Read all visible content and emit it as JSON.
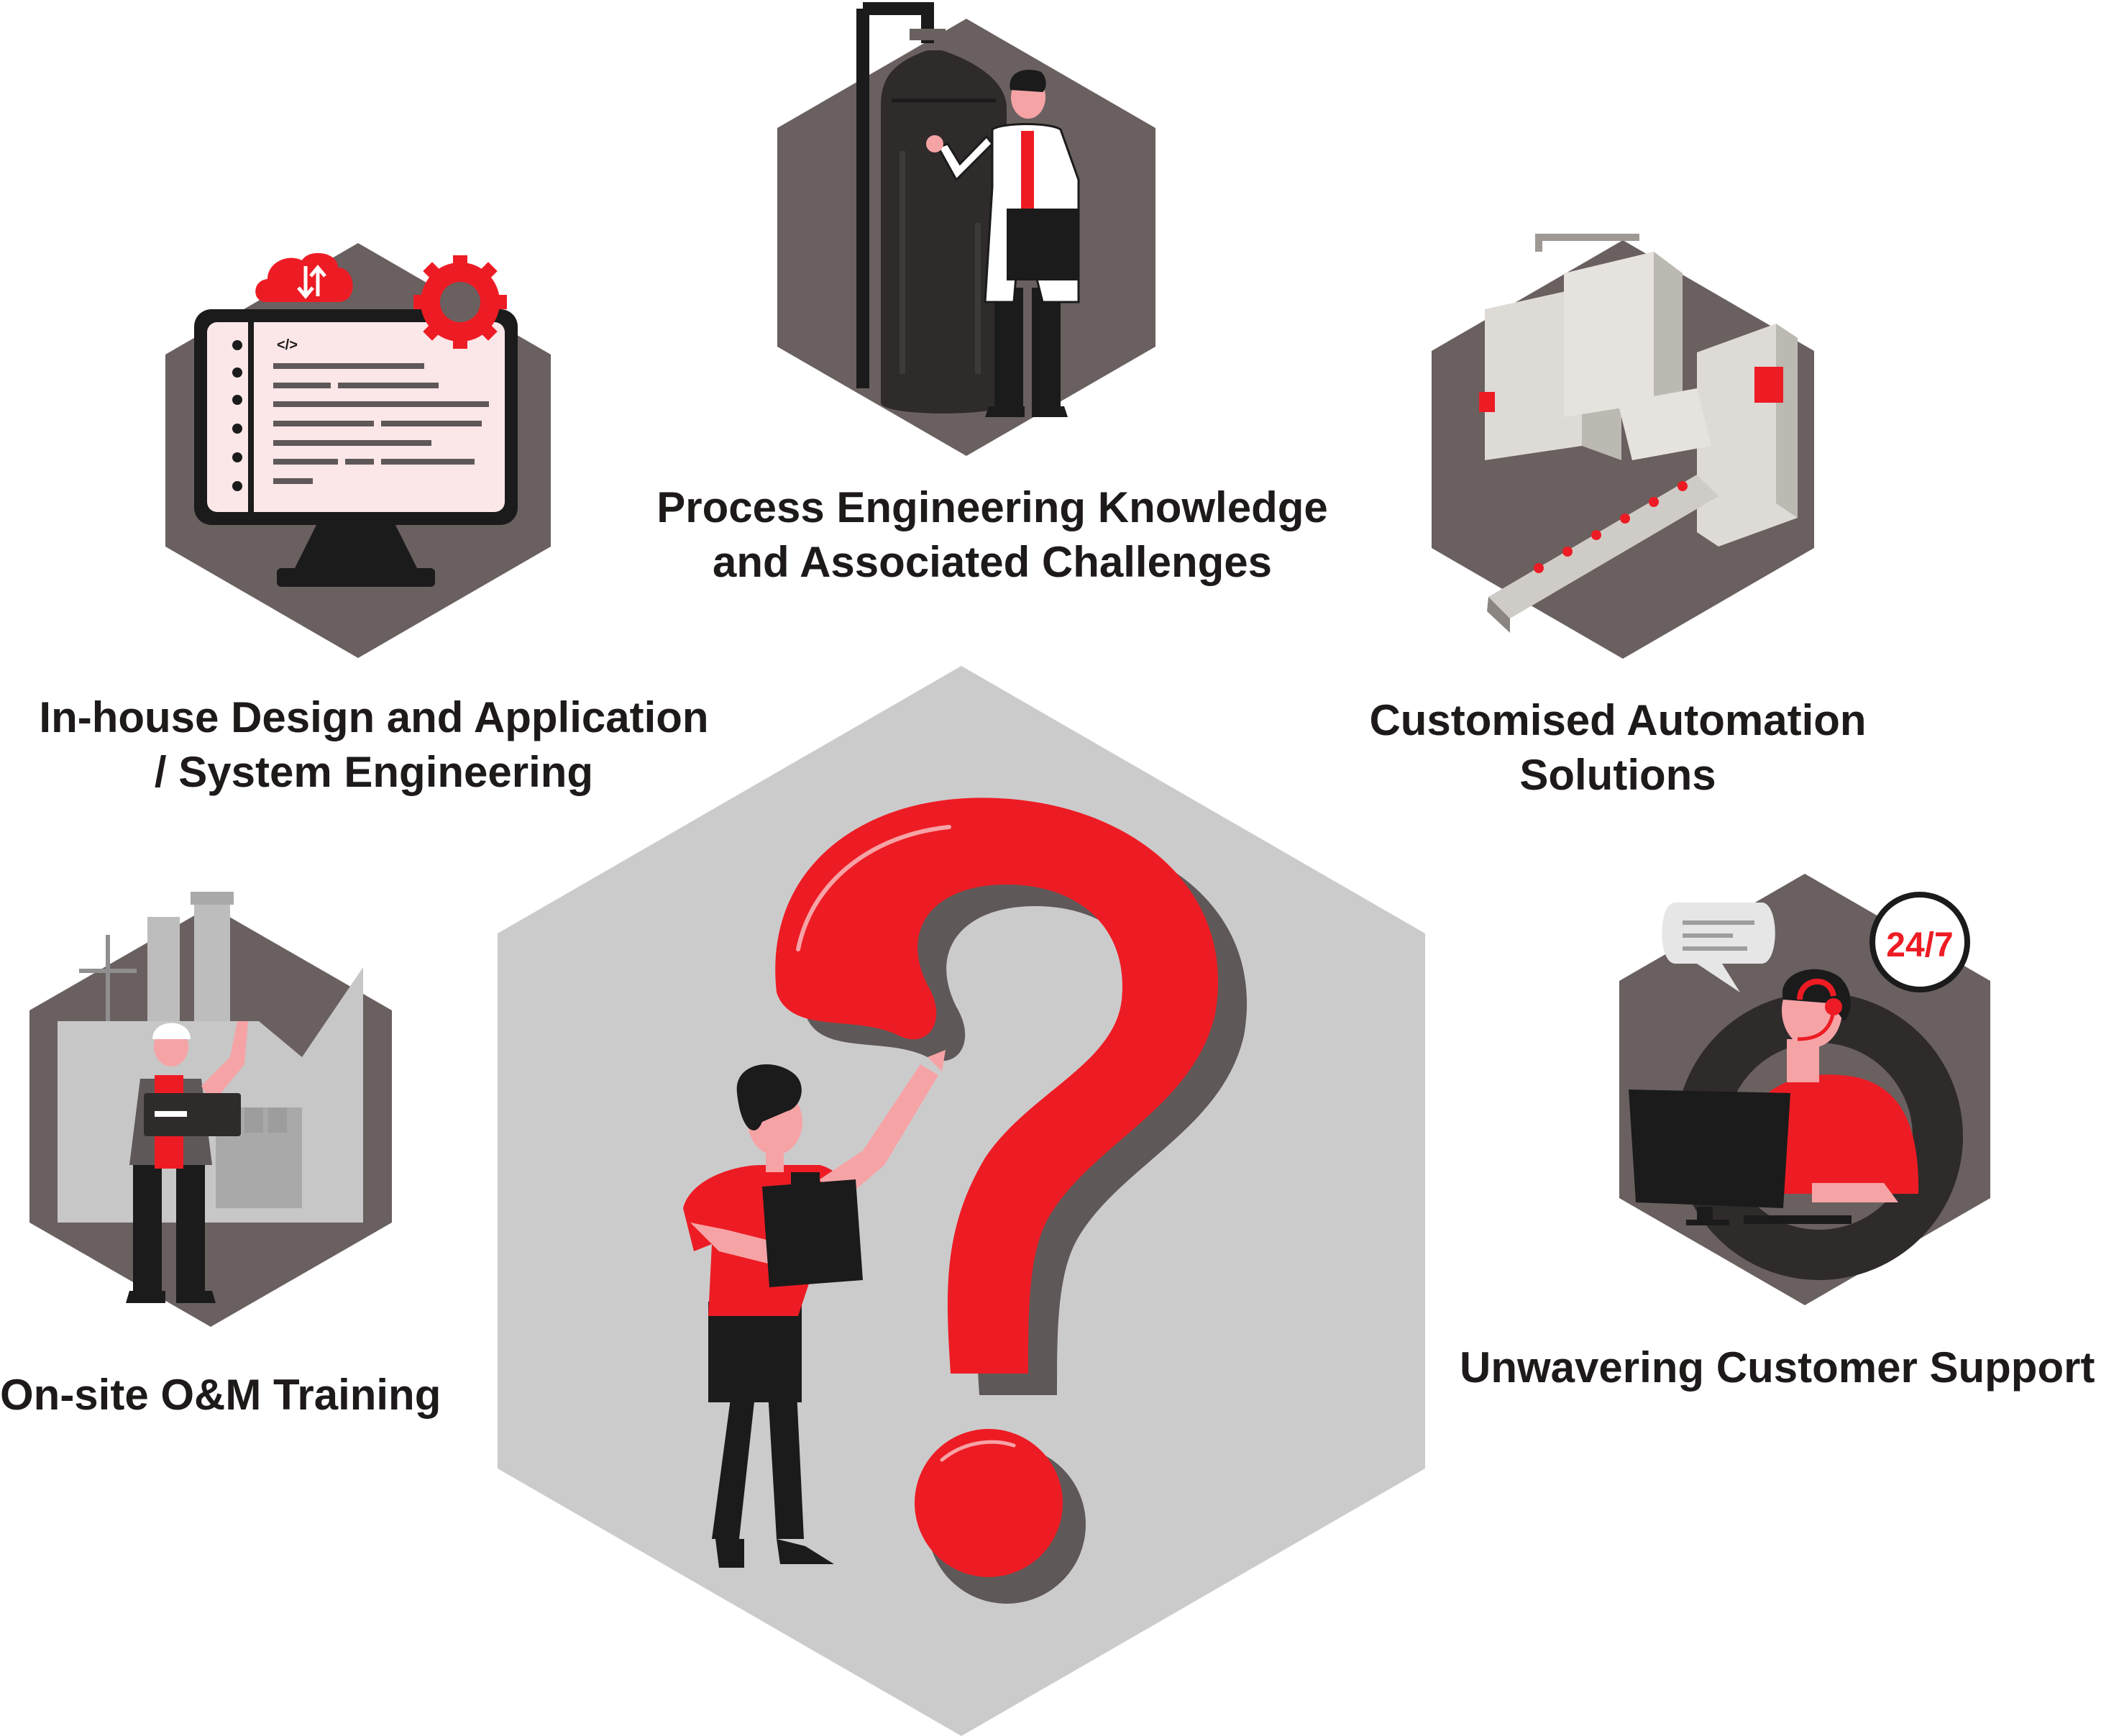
{
  "features": {
    "process": {
      "line1": "Process Engineering Knowledge",
      "line2": "and Associated Challenges"
    },
    "inhouse": {
      "line1": "In-house Design and Application",
      "line2": "/ System Engineering"
    },
    "automation": {
      "line1": "Customised Automation",
      "line2": "Solutions"
    },
    "onsite": {
      "line1": "On-site O&M Training"
    },
    "support": {
      "line1": "Unwavering Customer Support"
    }
  },
  "support_badge": "24/7",
  "code_tag": "</>",
  "colors": {
    "accent": "#ed1c24",
    "hexagon_dark": "#6a6060",
    "hexagon_center": "#cccbcc",
    "text": "#1e1a1a",
    "ink": "#1b1b1b"
  },
  "icons": [
    "laptop-icon",
    "cloud-sync-icon",
    "gear-icon",
    "scientist-icon",
    "gas-tank-icon",
    "factory-machine-icon",
    "worker-icon",
    "headset-agent-icon",
    "question-mark-icon"
  ]
}
